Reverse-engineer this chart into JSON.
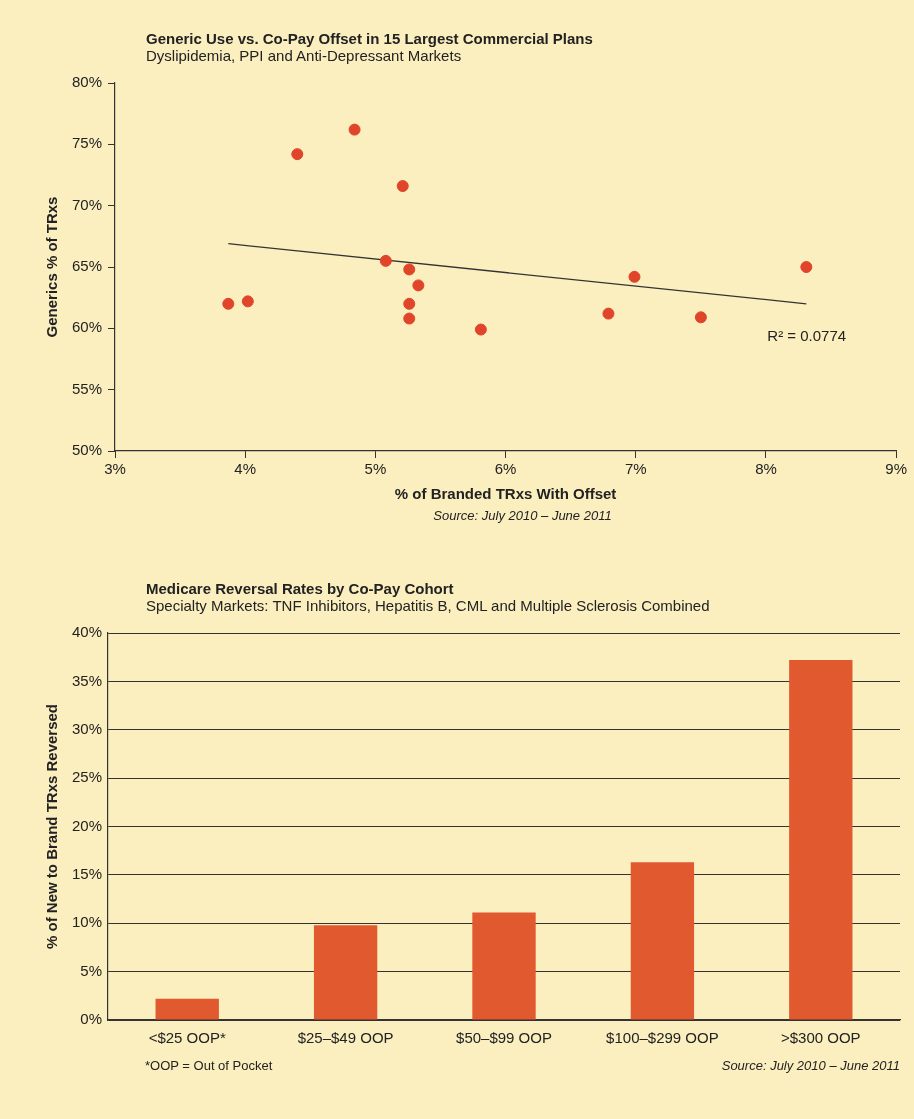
{
  "chart_data": [
    {
      "type": "scatter",
      "title": "Generic Use vs. Co-Pay Offset in 15 Largest Commercial Plans",
      "subtitle": "Dyslipidemia, PPI and Anti-Depressant Markets",
      "xlabel": "% of Branded TRxs With Offset",
      "ylabel": "Generics % of TRxs",
      "series": [
        {
          "type": "scatter",
          "color": "#e0452a",
          "x": [
            3.87,
            4.02,
            4.4,
            4.84,
            5.21,
            5.08,
            5.26,
            5.33,
            5.26,
            5.26,
            5.81,
            6.79,
            6.99,
            7.5,
            8.31
          ],
          "values": [
            62.0,
            62.2,
            74.2,
            76.2,
            71.6,
            65.5,
            64.8,
            63.5,
            62.0,
            60.8,
            59.9,
            61.2,
            64.2,
            60.9,
            65.0
          ]
        },
        {
          "type": "line",
          "color": "#333333",
          "marker": "none",
          "x": [
            3.87,
            8.31
          ],
          "values": [
            66.9,
            62.0
          ]
        }
      ],
      "xlim": [
        3,
        9
      ],
      "xticks": [
        {
          "value": 3,
          "label": "3%"
        },
        {
          "value": 4,
          "label": "4%"
        },
        {
          "value": 5,
          "label": "5%"
        },
        {
          "value": 6,
          "label": "6%"
        },
        {
          "value": 7,
          "label": "7%"
        },
        {
          "value": 8,
          "label": "8%"
        },
        {
          "value": 9,
          "label": "9%"
        }
      ],
      "ylim": [
        50,
        80
      ],
      "yticks": [
        {
          "value": 50,
          "label": "50%"
        },
        {
          "value": 55,
          "label": "55%"
        },
        {
          "value": 60,
          "label": "60%"
        },
        {
          "value": 65,
          "label": "65%"
        },
        {
          "value": 70,
          "label": "70%"
        },
        {
          "value": 75,
          "label": "75%"
        },
        {
          "value": 80,
          "label": "80%"
        }
      ],
      "grid": false,
      "legend": false,
      "marker": "circle",
      "annotations": [
        "R² = 0.0774",
        "Source: July 2010 – June 2011"
      ]
    },
    {
      "type": "bar",
      "title": "Medicare Reversal Rates by Co-Pay Cohort",
      "subtitle": "Specialty Markets: TNF Inhibitors, Hepatitis B, CML and Multiple Sclerosis Combined",
      "ylabel": "% of New to Brand TRxs Reversed",
      "categories": [
        "<$25 OOP*",
        "$25–$49 OOP",
        "$50–$99 OOP",
        "$100–$299 OOP",
        ">$300 OOP"
      ],
      "values": [
        2.2,
        9.8,
        11.1,
        16.3,
        37.2
      ],
      "color": "#e0592f",
      "ylim": [
        0,
        40
      ],
      "yticks": [
        {
          "value": 0,
          "label": "0%"
        },
        {
          "value": 5,
          "label": "5%"
        },
        {
          "value": 10,
          "label": "10%"
        },
        {
          "value": 15,
          "label": "15%"
        },
        {
          "value": 20,
          "label": "20%"
        },
        {
          "value": 25,
          "label": "25%"
        },
        {
          "value": 30,
          "label": "30%"
        },
        {
          "value": 35,
          "label": "35%"
        },
        {
          "value": 40,
          "label": "40%"
        }
      ],
      "grid": "y",
      "legend": false,
      "annotations": [
        "*OOP = Out of Pocket",
        "Source: July 2010 – June 2011"
      ]
    }
  ]
}
